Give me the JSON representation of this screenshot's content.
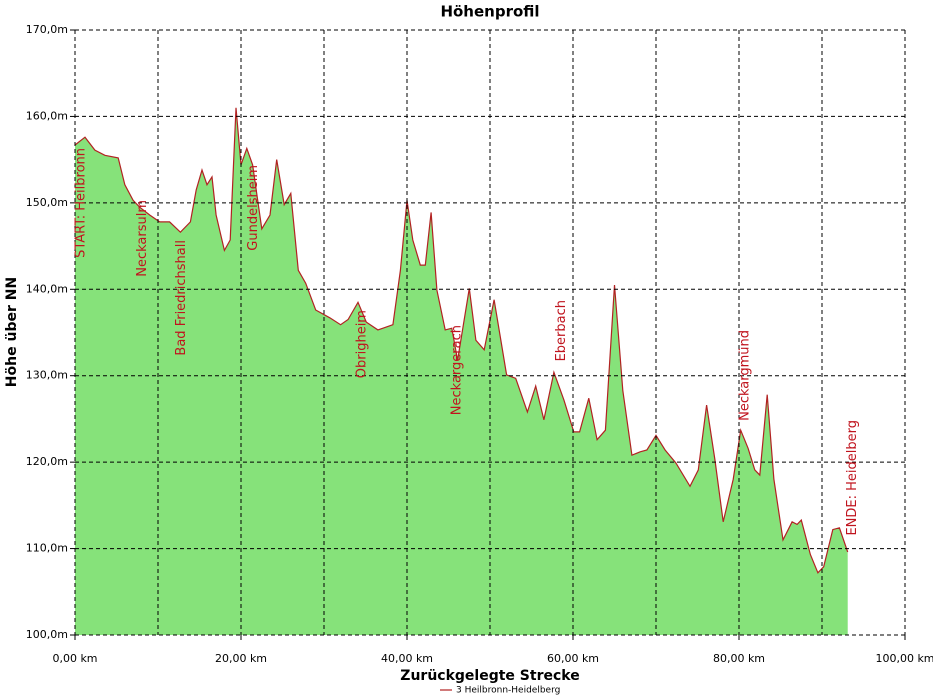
{
  "chart_data": {
    "type": "area",
    "title": "Höhenprofil",
    "x_label": "Zurückgelegte Strecke",
    "y_label": "Höhe über NN",
    "series": [
      {
        "name": "3 Heilbronn-Heidelberg",
        "color": "#b22222",
        "fill": "#86e27a",
        "x": [
          0,
          1.2,
          2.4,
          3.6,
          5.2,
          6.0,
          7.0,
          7.8,
          9.0,
          10.2,
          11.4,
          12.7,
          13.9,
          14.6,
          15.3,
          15.9,
          16.5,
          17.0,
          18.0,
          18.7,
          19.4,
          20.0,
          20.7,
          21.4,
          22.5,
          23.5,
          24.3,
          25.2,
          26.0,
          26.9,
          27.8,
          29.0,
          30.7,
          32.0,
          32.9,
          34.1,
          35.1,
          36.5,
          38.3,
          39.2,
          40.0,
          40.7,
          41.6,
          42.2,
          42.9,
          43.6,
          44.6,
          45.4,
          46.1,
          47.5,
          48.3,
          49.3,
          50.5,
          51.2,
          52.0,
          53.1,
          54.5,
          55.5,
          56.5,
          57.7,
          58.9,
          60.1,
          60.8,
          61.9,
          62.9,
          63.9,
          65.0,
          66.0,
          67.1,
          68.1,
          68.9,
          70.0,
          71.1,
          72.4,
          74.1,
          75.1,
          76.1,
          77.1,
          78.1,
          79.3,
          80.2,
          81.1,
          81.9,
          82.5,
          83.4,
          84.2,
          85.3,
          86.4,
          87.0,
          87.5,
          88.6,
          89.5,
          90.2,
          91.3,
          92.1,
          93.1
        ],
        "values": [
          156.7,
          157.6,
          156.1,
          155.5,
          155.2,
          152.1,
          150.3,
          149.5,
          148.6,
          147.8,
          147.8,
          146.6,
          147.8,
          151.5,
          153.8,
          152.1,
          153.0,
          148.6,
          144.5,
          145.7,
          161.0,
          154.4,
          156.3,
          154.4,
          147.0,
          148.6,
          155.0,
          149.8,
          151.1,
          142.2,
          140.7,
          137.6,
          136.7,
          135.9,
          136.5,
          138.5,
          136.2,
          135.3,
          135.9,
          142.2,
          150.3,
          145.7,
          142.8,
          142.8,
          148.9,
          139.9,
          135.3,
          135.5,
          131.8,
          140.1,
          134.1,
          133.0,
          138.8,
          134.7,
          130.1,
          129.7,
          125.8,
          128.8,
          124.9,
          130.4,
          127.2,
          123.5,
          123.5,
          127.4,
          122.6,
          123.7,
          140.5,
          128.3,
          120.8,
          121.2,
          121.4,
          123.1,
          121.4,
          119.9,
          117.2,
          119.1,
          126.6,
          120.3,
          113.1,
          118.0,
          123.7,
          121.6,
          119.1,
          118.5,
          127.8,
          118.0,
          111.0,
          113.1,
          112.8,
          113.3,
          109.3,
          107.2,
          107.9,
          112.2,
          112.4,
          109.6
        ]
      }
    ],
    "annotations": [
      {
        "text": "START: Heilbronn",
        "x": 0.1
      },
      {
        "text": "Neckarsulm",
        "x": 7.5
      },
      {
        "text": "Bad Friedrichshall",
        "x": 12.2
      },
      {
        "text": "Gundelsheim",
        "x": 20.9
      },
      {
        "text": "Obrigheim",
        "x": 34.0
      },
      {
        "text": "Neckargerach",
        "x": 45.4
      },
      {
        "text": "Eberbach",
        "x": 58.0
      },
      {
        "text": "Neckargmünd",
        "x": 80.1
      },
      {
        "text": "ENDE: Heidelberg",
        "x": 93.1
      }
    ],
    "xlim": [
      0,
      100
    ],
    "xticks": [
      {
        "value": 0,
        "label": "0,00 km"
      },
      {
        "value": 20,
        "label": "20,00 km"
      },
      {
        "value": 40,
        "label": "40,00 km"
      },
      {
        "value": 60,
        "label": "60,00 km"
      },
      {
        "value": 80,
        "label": "80,00 km"
      },
      {
        "value": 100,
        "label": "100,00 km"
      }
    ],
    "xminor": [
      10,
      30,
      50,
      70,
      90
    ],
    "ylim": [
      100,
      170
    ],
    "yticks": [
      {
        "value": 100,
        "label": "100,0m"
      },
      {
        "value": 110,
        "label": "110,0m"
      },
      {
        "value": 120,
        "label": "120,0m"
      },
      {
        "value": 130,
        "label": "130,0m"
      },
      {
        "value": 140,
        "label": "140,0m"
      },
      {
        "value": 150,
        "label": "150,0m"
      },
      {
        "value": 160,
        "label": "160,0m"
      },
      {
        "value": 170,
        "label": "170,0m"
      }
    ],
    "grid": true,
    "legend": "bottom"
  }
}
